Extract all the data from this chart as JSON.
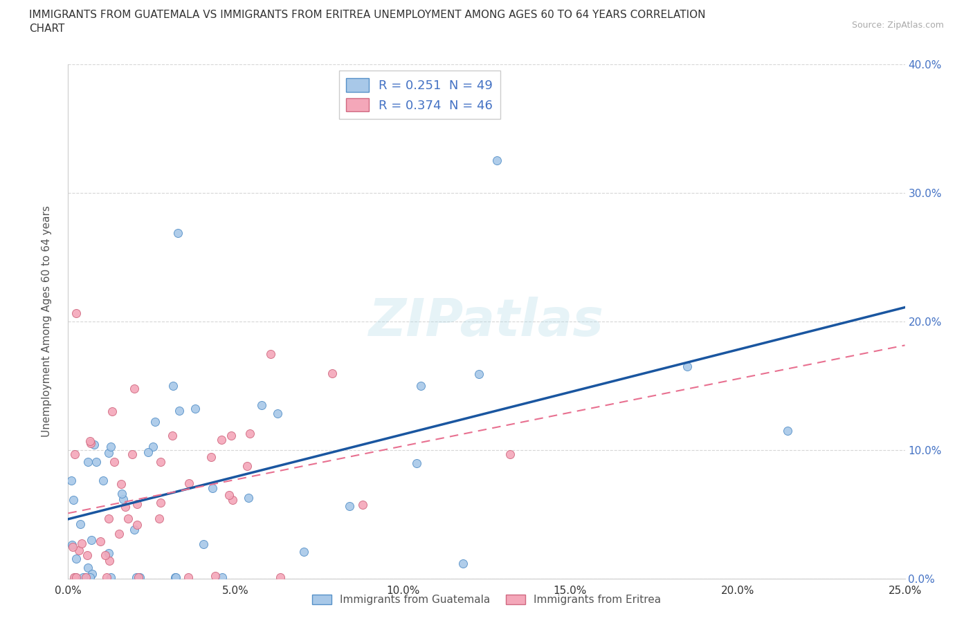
{
  "title_line1": "IMMIGRANTS FROM GUATEMALA VS IMMIGRANTS FROM ERITREA UNEMPLOYMENT AMONG AGES 60 TO 64 YEARS CORRELATION",
  "title_line2": "CHART",
  "source": "Source: ZipAtlas.com",
  "ylabel": "Unemployment Among Ages 60 to 64 years",
  "xlim": [
    0.0,
    0.25
  ],
  "ylim": [
    0.0,
    0.4
  ],
  "xticks": [
    0.0,
    0.05,
    0.1,
    0.15,
    0.2,
    0.25
  ],
  "yticks": [
    0.0,
    0.1,
    0.2,
    0.3,
    0.4
  ],
  "ytick_labels_right": [
    "0.0%",
    "10.0%",
    "20.0%",
    "30.0%",
    "40.0%"
  ],
  "xtick_labels": [
    "0.0%",
    "5.0%",
    "10.0%",
    "15.0%",
    "20.0%",
    "25.0%"
  ],
  "guatemala_color": "#a8c8e8",
  "eritrea_color": "#f4a7b9",
  "guatemala_edge_color": "#5590c8",
  "eritrea_edge_color": "#d06880",
  "guatemala_line_color": "#1a56a0",
  "eritrea_line_color": "#e87090",
  "R_guatemala": 0.251,
  "N_guatemala": 49,
  "R_eritrea": 0.374,
  "N_eritrea": 46,
  "watermark": "ZIPatlas",
  "background_color": "#ffffff",
  "grid_color": "#cccccc",
  "legend_label_color": "#4472c4",
  "bottom_legend_label1": "Immigrants from Guatemala",
  "bottom_legend_label2": "Immigrants from Eritrea"
}
